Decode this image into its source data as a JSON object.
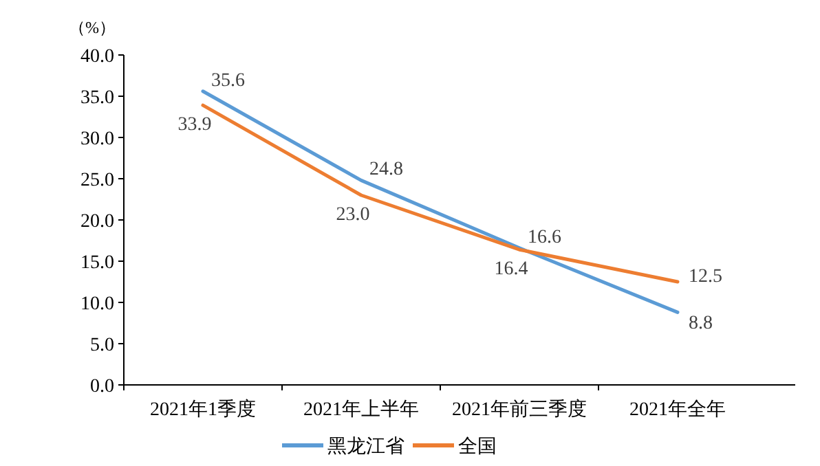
{
  "chart_data": {
    "type": "line",
    "ylabel": "（%）",
    "categories": [
      "2021年1季度",
      "2021年上半年",
      "2021年前三季度",
      "2021年全年"
    ],
    "series": [
      {
        "name": "黑龙江省",
        "color": "#5b9bd5",
        "values": [
          35.6,
          24.8,
          16.6,
          8.8
        ],
        "value_labels": [
          "35.6",
          "24.8",
          "16.6",
          "8.8"
        ]
      },
      {
        "name": "全国",
        "color": "#ed7d31",
        "values": [
          33.9,
          23.0,
          16.4,
          12.5
        ],
        "value_labels": [
          "33.9",
          "23.0",
          "16.4",
          "12.5"
        ]
      }
    ],
    "ylim": [
      0,
      40
    ],
    "yticks": [
      {
        "value": 0,
        "label": "0.0"
      },
      {
        "value": 5,
        "label": "5.0"
      },
      {
        "value": 10,
        "label": "10.0"
      },
      {
        "value": 15,
        "label": "15.0"
      },
      {
        "value": 20,
        "label": "20.0"
      },
      {
        "value": 25,
        "label": "25.0"
      },
      {
        "value": 30,
        "label": "30.0"
      },
      {
        "value": 35,
        "label": "35.0"
      },
      {
        "value": 40,
        "label": "40.0"
      }
    ],
    "grid": false,
    "legend": "bottom",
    "marker": "none",
    "line_style": "solid"
  }
}
